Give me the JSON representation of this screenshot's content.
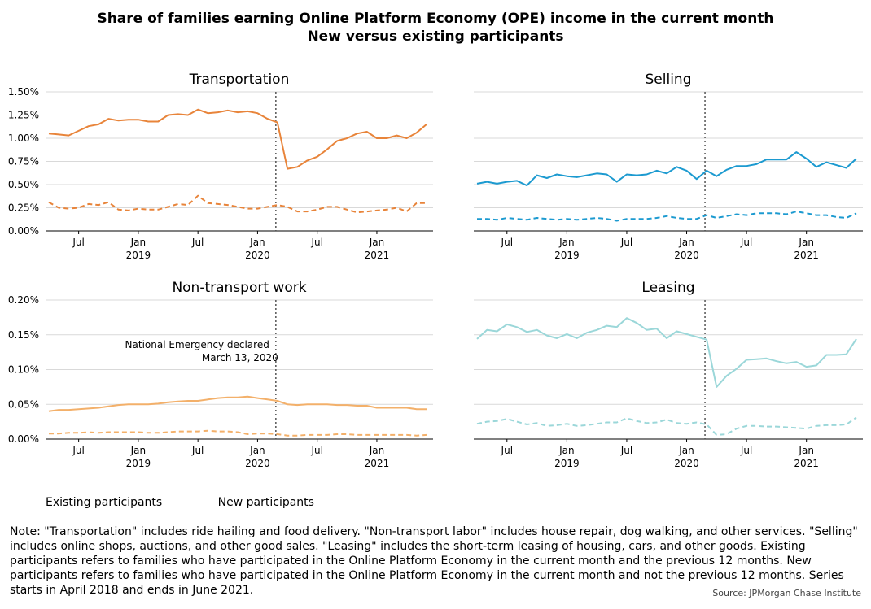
{
  "title_line1": "Share of families earning Online Platform Economy (OPE) income in the current month",
  "title_line2": "New versus existing participants",
  "legend": {
    "existing": "Existing participants",
    "new": "New participants"
  },
  "note": "Note: \"Transportation\" includes ride hailing and food delivery. \"Non-transport labor\" includes house repair, dog walking, and other services. \"Selling\" includes online shops, auctions, and other good sales. \"Leasing\" includes the short-term leasing of housing, cars, and other goods. Existing participants refers to families who have participated in the Online Platform Economy in the current month and the previous 12 months. New participants refers to families who have participated in the Online Platform Economy in the current month and not the previous 12 months. Series starts in April 2018 and ends in June 2021.",
  "source": "Source: JPMorgan Chase Institute",
  "chart_data": [
    {
      "type": "line",
      "title": "Transportation",
      "color": "#e8843a",
      "x": [
        "2018-04",
        "2018-05",
        "2018-06",
        "2018-07",
        "2018-08",
        "2018-09",
        "2018-10",
        "2018-11",
        "2018-12",
        "2019-01",
        "2019-02",
        "2019-03",
        "2019-04",
        "2019-05",
        "2019-06",
        "2019-07",
        "2019-08",
        "2019-09",
        "2019-10",
        "2019-11",
        "2019-12",
        "2020-01",
        "2020-02",
        "2020-03",
        "2020-04",
        "2020-05",
        "2020-06",
        "2020-07",
        "2020-08",
        "2020-09",
        "2020-10",
        "2020-11",
        "2020-12",
        "2021-01",
        "2021-02",
        "2021-03",
        "2021-04",
        "2021-05",
        "2021-06"
      ],
      "x_ticks": [
        {
          "x": "2018-07",
          "label": "Jul"
        },
        {
          "x": "2019-01",
          "label": "Jan",
          "year": "2019"
        },
        {
          "x": "2019-07",
          "label": "Jul"
        },
        {
          "x": "2020-01",
          "label": "Jan",
          "year": "2020"
        },
        {
          "x": "2020-07",
          "label": "Jul"
        },
        {
          "x": "2021-01",
          "label": "Jan",
          "year": "2021"
        }
      ],
      "ylim": [
        0,
        0.015
      ],
      "y_ticks": [
        {
          "v": 0,
          "label": "0.00%"
        },
        {
          "v": 0.0025,
          "label": "0.25%"
        },
        {
          "v": 0.005,
          "label": "0.50%"
        },
        {
          "v": 0.0075,
          "label": "0.75%"
        },
        {
          "v": 0.01,
          "label": "1.00%"
        },
        {
          "v": 0.0125,
          "label": "1.25%"
        },
        {
          "v": 0.015,
          "label": "1.50%"
        }
      ],
      "series": [
        {
          "name": "Existing participants",
          "style": "solid",
          "values": [
            0.0105,
            0.0104,
            0.0103,
            0.0108,
            0.0113,
            0.0115,
            0.0121,
            0.0119,
            0.012,
            0.012,
            0.0118,
            0.0118,
            0.0125,
            0.0126,
            0.0125,
            0.0131,
            0.0127,
            0.0128,
            0.013,
            0.0128,
            0.0129,
            0.0127,
            0.0121,
            0.0117,
            0.0067,
            0.0069,
            0.0076,
            0.008,
            0.0088,
            0.0097,
            0.01,
            0.0105,
            0.0107,
            0.01,
            0.01,
            0.0103,
            0.01,
            0.0106,
            0.0115
          ]
        },
        {
          "name": "New participants",
          "style": "dashed",
          "values": [
            0.0031,
            0.0025,
            0.0024,
            0.0025,
            0.0029,
            0.0028,
            0.0031,
            0.0023,
            0.0022,
            0.0024,
            0.0023,
            0.0023,
            0.0026,
            0.0029,
            0.0028,
            0.0038,
            0.003,
            0.0029,
            0.0028,
            0.0026,
            0.0024,
            0.0024,
            0.0026,
            0.0028,
            0.0026,
            0.0021,
            0.0021,
            0.0023,
            0.0026,
            0.0026,
            0.0023,
            0.002,
            0.0021,
            0.0022,
            0.0023,
            0.0025,
            0.0021,
            0.003,
            0.003
          ]
        }
      ],
      "grid": true
    },
    {
      "type": "line",
      "title": "Selling",
      "color": "#1c9ad0",
      "x": [
        "2018-04",
        "2018-05",
        "2018-06",
        "2018-07",
        "2018-08",
        "2018-09",
        "2018-10",
        "2018-11",
        "2018-12",
        "2019-01",
        "2019-02",
        "2019-03",
        "2019-04",
        "2019-05",
        "2019-06",
        "2019-07",
        "2019-08",
        "2019-09",
        "2019-10",
        "2019-11",
        "2019-12",
        "2020-01",
        "2020-02",
        "2020-03",
        "2020-04",
        "2020-05",
        "2020-06",
        "2020-07",
        "2020-08",
        "2020-09",
        "2020-10",
        "2020-11",
        "2020-12",
        "2021-01",
        "2021-02",
        "2021-03",
        "2021-04",
        "2021-05",
        "2021-06"
      ],
      "x_ticks": [
        {
          "x": "2018-07",
          "label": "Jul"
        },
        {
          "x": "2019-01",
          "label": "Jan",
          "year": "2019"
        },
        {
          "x": "2019-07",
          "label": "Jul"
        },
        {
          "x": "2020-01",
          "label": "Jan",
          "year": "2020"
        },
        {
          "x": "2020-07",
          "label": "Jul"
        },
        {
          "x": "2021-01",
          "label": "Jan",
          "year": "2021"
        }
      ],
      "ylim": [
        0,
        0.015
      ],
      "y_ticks": [
        {
          "v": 0,
          "label": ""
        },
        {
          "v": 0.0025,
          "label": ""
        },
        {
          "v": 0.005,
          "label": ""
        },
        {
          "v": 0.0075,
          "label": ""
        },
        {
          "v": 0.01,
          "label": ""
        },
        {
          "v": 0.0125,
          "label": ""
        },
        {
          "v": 0.015,
          "label": ""
        }
      ],
      "series": [
        {
          "name": "Existing participants",
          "style": "solid",
          "values": [
            0.0051,
            0.0053,
            0.0051,
            0.0053,
            0.0054,
            0.0049,
            0.006,
            0.0057,
            0.0061,
            0.0059,
            0.0058,
            0.006,
            0.0062,
            0.0061,
            0.0053,
            0.0061,
            0.006,
            0.0061,
            0.0065,
            0.0062,
            0.0069,
            0.0065,
            0.0056,
            0.0065,
            0.0059,
            0.0066,
            0.007,
            0.007,
            0.0072,
            0.0077,
            0.0077,
            0.0077,
            0.0085,
            0.0078,
            0.0069,
            0.0074,
            0.0071,
            0.0068,
            0.0078
          ]
        },
        {
          "name": "New participants",
          "style": "dashed",
          "values": [
            0.0013,
            0.0013,
            0.0012,
            0.0014,
            0.0013,
            0.0012,
            0.0014,
            0.0013,
            0.0012,
            0.0013,
            0.0012,
            0.0013,
            0.0014,
            0.0013,
            0.0011,
            0.0013,
            0.0013,
            0.0013,
            0.0014,
            0.0016,
            0.0014,
            0.0013,
            0.0013,
            0.0017,
            0.0014,
            0.0016,
            0.0018,
            0.0017,
            0.0019,
            0.0019,
            0.0019,
            0.0018,
            0.0021,
            0.0019,
            0.0017,
            0.0017,
            0.0015,
            0.0014,
            0.0019
          ]
        }
      ],
      "grid": true
    },
    {
      "type": "line",
      "title": "Non-transport work",
      "color": "#f3b06a",
      "x": [
        "2018-04",
        "2018-05",
        "2018-06",
        "2018-07",
        "2018-08",
        "2018-09",
        "2018-10",
        "2018-11",
        "2018-12",
        "2019-01",
        "2019-02",
        "2019-03",
        "2019-04",
        "2019-05",
        "2019-06",
        "2019-07",
        "2019-08",
        "2019-09",
        "2019-10",
        "2019-11",
        "2019-12",
        "2020-01",
        "2020-02",
        "2020-03",
        "2020-04",
        "2020-05",
        "2020-06",
        "2020-07",
        "2020-08",
        "2020-09",
        "2020-10",
        "2020-11",
        "2020-12",
        "2021-01",
        "2021-02",
        "2021-03",
        "2021-04",
        "2021-05",
        "2021-06"
      ],
      "x_ticks": [
        {
          "x": "2018-07",
          "label": "Jul"
        },
        {
          "x": "2019-01",
          "label": "Jan",
          "year": "2019"
        },
        {
          "x": "2019-07",
          "label": "Jul"
        },
        {
          "x": "2020-01",
          "label": "Jan",
          "year": "2020"
        },
        {
          "x": "2020-07",
          "label": "Jul"
        },
        {
          "x": "2021-01",
          "label": "Jan",
          "year": "2021"
        }
      ],
      "ylim": [
        0,
        0.002
      ],
      "y_ticks": [
        {
          "v": 0,
          "label": "0.00%"
        },
        {
          "v": 0.0005,
          "label": "0.05%"
        },
        {
          "v": 0.001,
          "label": "0.10%"
        },
        {
          "v": 0.0015,
          "label": "0.15%"
        },
        {
          "v": 0.002,
          "label": "0.20%"
        }
      ],
      "series": [
        {
          "name": "Existing participants",
          "style": "solid",
          "values": [
            0.0004,
            0.00042,
            0.00042,
            0.00043,
            0.00044,
            0.00045,
            0.00047,
            0.00049,
            0.0005,
            0.0005,
            0.0005,
            0.00051,
            0.00053,
            0.00054,
            0.00055,
            0.00055,
            0.00057,
            0.00059,
            0.0006,
            0.0006,
            0.00061,
            0.00059,
            0.00057,
            0.00055,
            0.0005,
            0.00049,
            0.0005,
            0.0005,
            0.0005,
            0.00049,
            0.00049,
            0.00048,
            0.00048,
            0.00045,
            0.00045,
            0.00045,
            0.00045,
            0.00043,
            0.00043
          ]
        },
        {
          "name": "New participants",
          "style": "dashed",
          "values": [
            8e-05,
            8e-05,
            9e-05,
            9e-05,
            0.0001,
            9e-05,
            0.0001,
            0.0001,
            0.0001,
            0.0001,
            9e-05,
            9e-05,
            0.0001,
            0.00011,
            0.00011,
            0.00011,
            0.00012,
            0.00011,
            0.00011,
            0.0001,
            7e-05,
            8e-05,
            8e-05,
            7e-05,
            5e-05,
            5e-05,
            6e-05,
            6e-05,
            6e-05,
            7e-05,
            7e-05,
            6e-05,
            6e-05,
            6e-05,
            6e-05,
            6e-05,
            6e-05,
            5e-05,
            6e-05
          ]
        }
      ],
      "grid": true,
      "annotation": {
        "line1": "National Emergency declared",
        "line2": "March 13, 2020"
      }
    },
    {
      "type": "line",
      "title": "Leasing",
      "color": "#9bd7d9",
      "x": [
        "2018-04",
        "2018-05",
        "2018-06",
        "2018-07",
        "2018-08",
        "2018-09",
        "2018-10",
        "2018-11",
        "2018-12",
        "2019-01",
        "2019-02",
        "2019-03",
        "2019-04",
        "2019-05",
        "2019-06",
        "2019-07",
        "2019-08",
        "2019-09",
        "2019-10",
        "2019-11",
        "2019-12",
        "2020-01",
        "2020-02",
        "2020-03",
        "2020-04",
        "2020-05",
        "2020-06",
        "2020-07",
        "2020-08",
        "2020-09",
        "2020-10",
        "2020-11",
        "2020-12",
        "2021-01",
        "2021-02",
        "2021-03",
        "2021-04",
        "2021-05",
        "2021-06"
      ],
      "x_ticks": [
        {
          "x": "2018-07",
          "label": "Jul"
        },
        {
          "x": "2019-01",
          "label": "Jan",
          "year": "2019"
        },
        {
          "x": "2019-07",
          "label": "Jul"
        },
        {
          "x": "2020-01",
          "label": "Jan",
          "year": "2020"
        },
        {
          "x": "2020-07",
          "label": "Jul"
        },
        {
          "x": "2021-01",
          "label": "Jan",
          "year": "2021"
        }
      ],
      "ylim": [
        0,
        0.002
      ],
      "y_ticks": [
        {
          "v": 0,
          "label": ""
        },
        {
          "v": 0.0005,
          "label": ""
        },
        {
          "v": 0.001,
          "label": ""
        },
        {
          "v": 0.0015,
          "label": ""
        },
        {
          "v": 0.002,
          "label": ""
        }
      ],
      "series": [
        {
          "name": "Existing participants",
          "style": "solid",
          "values": [
            0.00144,
            0.00157,
            0.00155,
            0.00165,
            0.00161,
            0.00154,
            0.00157,
            0.00149,
            0.00145,
            0.00151,
            0.00145,
            0.00153,
            0.00157,
            0.00163,
            0.00161,
            0.00174,
            0.00167,
            0.00157,
            0.00159,
            0.00145,
            0.00155,
            0.00151,
            0.00147,
            0.00143,
            0.00075,
            0.00091,
            0.00101,
            0.00114,
            0.00115,
            0.00116,
            0.00112,
            0.00109,
            0.00111,
            0.00104,
            0.00106,
            0.00121,
            0.00121,
            0.00122,
            0.00144
          ]
        },
        {
          "name": "New participants",
          "style": "dashed",
          "values": [
            0.00022,
            0.00025,
            0.00026,
            0.00029,
            0.00025,
            0.00021,
            0.00023,
            0.00019,
            0.0002,
            0.00022,
            0.00019,
            0.0002,
            0.00022,
            0.00024,
            0.00024,
            0.0003,
            0.00026,
            0.00023,
            0.00024,
            0.00028,
            0.00023,
            0.00022,
            0.00024,
            0.00021,
            6e-05,
            7e-05,
            0.00015,
            0.00019,
            0.00019,
            0.00018,
            0.00018,
            0.00017,
            0.00016,
            0.00015,
            0.00019,
            0.0002,
            0.0002,
            0.00021,
            0.00031
          ]
        }
      ],
      "grid": true
    }
  ],
  "event_line": {
    "x": "2020-03"
  }
}
